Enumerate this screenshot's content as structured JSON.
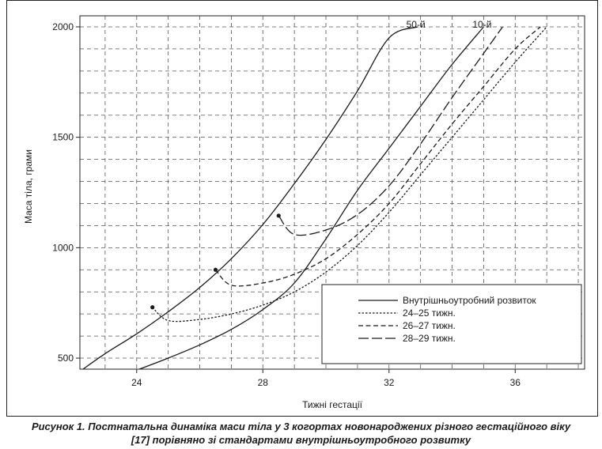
{
  "chart_data": {
    "type": "line",
    "xlabel": "Тижні гестації",
    "ylabel": "Маса тіла, грами",
    "xlim": [
      22.2,
      38.2
    ],
    "ylim": [
      450,
      2050
    ],
    "x_ticks": [
      24,
      28,
      32,
      36
    ],
    "y_ticks": [
      500,
      1000,
      1500,
      2000
    ],
    "grid": true,
    "legend_position": "bottom-right",
    "series": [
      {
        "name": "Внутрішньоутробний розвиток",
        "style": "solid",
        "label": "50-й",
        "x": [
          22.2,
          23,
          24,
          25,
          26,
          27,
          28,
          29,
          30,
          31,
          32,
          32.9
        ],
        "y": [
          440,
          520,
          610,
          710,
          820,
          950,
          1105,
          1290,
          1490,
          1710,
          1950,
          2000
        ]
      },
      {
        "name": "",
        "style": "solid",
        "label": "10-й",
        "x": [
          23.9,
          25,
          26,
          27,
          28,
          29,
          30,
          31,
          32,
          33,
          34,
          35
        ],
        "y": [
          440,
          500,
          560,
          630,
          720,
          840,
          1040,
          1260,
          1450,
          1640,
          1830,
          2000
        ]
      },
      {
        "name": "24–25 тижн.",
        "style": "dotted",
        "x": [
          24.5,
          25,
          26,
          27,
          28,
          29,
          30,
          31,
          32,
          33,
          34,
          35,
          36,
          37
        ],
        "y": [
          730,
          670,
          675,
          700,
          740,
          800,
          890,
          1010,
          1160,
          1330,
          1500,
          1670,
          1840,
          2000
        ]
      },
      {
        "name": "26–27 тижн.",
        "style": "dashed",
        "x": [
          26.5,
          27,
          28,
          29,
          30,
          31,
          32,
          33,
          34,
          35,
          36,
          36.8
        ],
        "y": [
          900,
          830,
          840,
          880,
          950,
          1060,
          1200,
          1380,
          1560,
          1730,
          1900,
          2000
        ]
      },
      {
        "name": "28–29 тижн.",
        "style": "longdash",
        "x": [
          28.5,
          29,
          30,
          31,
          32,
          33,
          34,
          35,
          35.6
        ],
        "y": [
          1145,
          1060,
          1080,
          1150,
          1280,
          1470,
          1680,
          1880,
          2000
        ]
      }
    ]
  },
  "caption": {
    "line1": "Рисунок 1. Постнатальна динаміка маси тіла у 3 когортах новонароджених різного гестаційного віку",
    "line2": "[17] порівняно зі стандартами внутрішньоутробного розвитку"
  }
}
